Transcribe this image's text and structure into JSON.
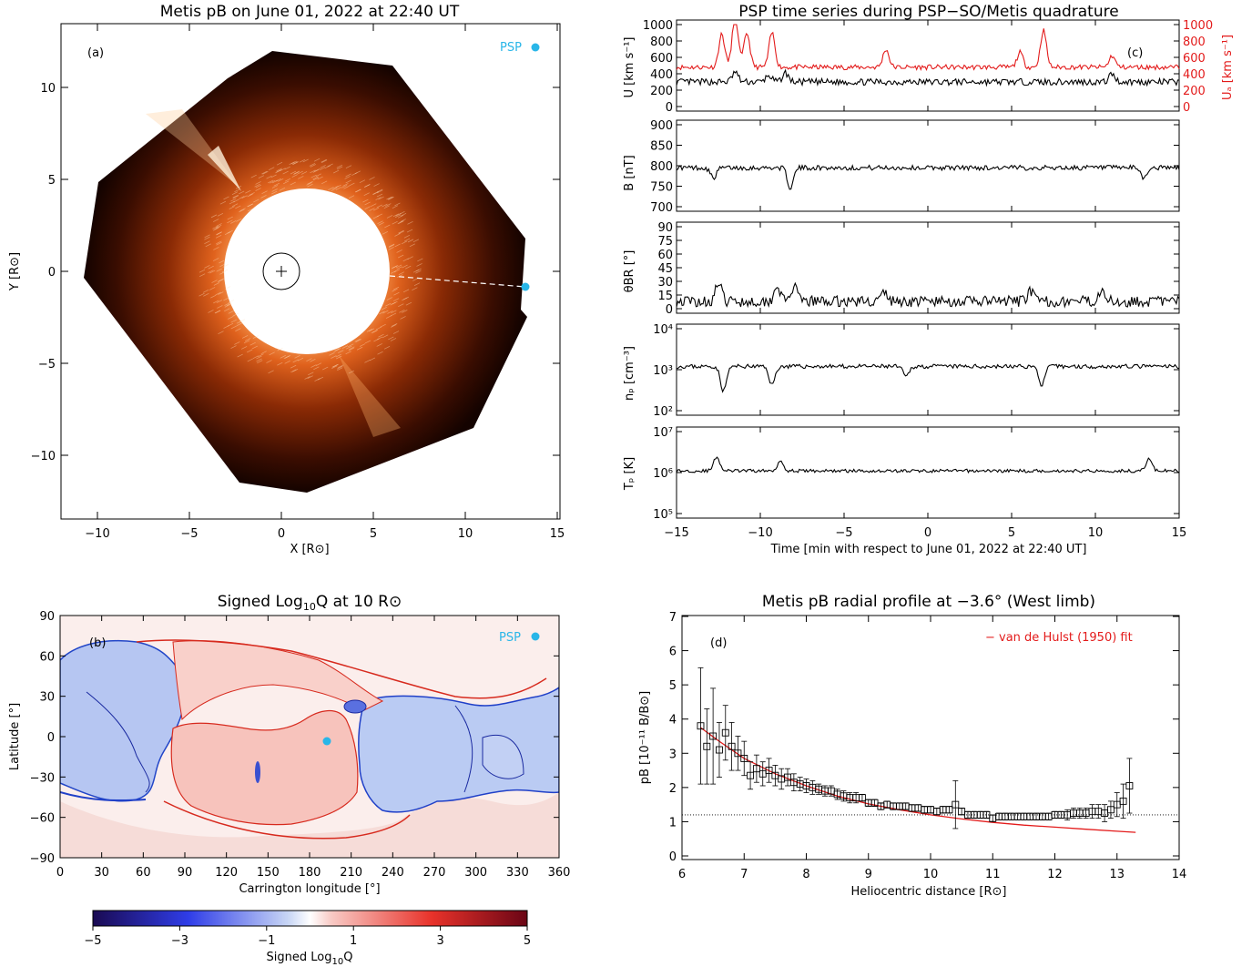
{
  "panel_a": {
    "title": "Metis pB on June 01, 2022 at 22:40 UT",
    "panel_label": "(a)",
    "marker_label": "PSP",
    "xlabel": "X [R⊙]",
    "ylabel": "Y [R⊙]",
    "xticks": [
      "−10",
      "−5",
      "0",
      "5",
      "10",
      "15"
    ],
    "yticks": [
      "−10",
      "−5",
      "0",
      "5",
      "10"
    ],
    "colors": {
      "psp": "#29b6e8",
      "corona": "#a33a0a"
    }
  },
  "panel_b": {
    "title": "Signed Log",
    "title_sub": "10",
    "title_rest": "Q at 10 R⊙",
    "panel_label": "(b)",
    "marker_label": "PSP",
    "xlabel": "Carrington longitude [°]",
    "ylabel": "Latitude [°]",
    "xticks": [
      "0",
      "30",
      "60",
      "90",
      "120",
      "150",
      "180",
      "210",
      "240",
      "270",
      "300",
      "330",
      "360"
    ],
    "yticks": [
      "90",
      "60",
      "30",
      "0",
      "−30",
      "−60",
      "−90"
    ],
    "colorbar": {
      "ticks": [
        "−5",
        "−3",
        "−1",
        "1",
        "3",
        "5"
      ],
      "label": "Signed Log",
      "label_sub": "10",
      "label_rest": "Q"
    }
  },
  "panel_c": {
    "title": "PSP time series during PSP−SO/Metis quadrature",
    "panel_label": "(c)",
    "xlabel": "Time [min with respect to June 01, 2022 at 22:40 UT]",
    "xticks": [
      "−15",
      "−10",
      "−5",
      "0",
      "5",
      "10",
      "15"
    ],
    "sub": {
      "u": {
        "ylabel": "U [km s⁻¹]",
        "ylabel_right": "Uₐ [km s⁻¹]",
        "ticks": [
          "1000",
          "800",
          "600",
          "400",
          "200",
          "0"
        ]
      },
      "b": {
        "ylabel": "B [nT]",
        "ticks": [
          "900",
          "850",
          "800",
          "750",
          "700"
        ]
      },
      "theta": {
        "ylabel": "θBR [°]",
        "ticks": [
          "90",
          "75",
          "60",
          "45",
          "30",
          "15",
          "0"
        ]
      },
      "np": {
        "ylabel": "nₚ [cm⁻³]",
        "ticks": [
          "10⁴",
          "10³",
          "10²"
        ]
      },
      "tp": {
        "ylabel": "Tₚ [K]",
        "ticks": [
          "10⁷",
          "10⁶",
          "10⁵"
        ]
      }
    },
    "colors": {
      "u": "#000000",
      "ua": "#e31b1b"
    }
  },
  "panel_d": {
    "title": "Metis pB radial profile at −3.6° (West limb)",
    "panel_label": "(d)",
    "legend": "− van de Hulst (1950) fit",
    "xlabel": "Heliocentric distance [R⊙]",
    "ylabel": "pB [10⁻¹¹ B/B⊙]",
    "xticks": [
      "6",
      "7",
      "8",
      "9",
      "10",
      "11",
      "12",
      "13",
      "14"
    ],
    "yticks": [
      "7",
      "6",
      "5",
      "4",
      "3",
      "2",
      "1",
      "0"
    ],
    "colors": {
      "fit": "#e31b1b"
    }
  },
  "chart_data": [
    {
      "type": "heatmap",
      "id": "a",
      "title": "Metis pB on June 01, 2022 at 22:40 UT",
      "xlabel": "X [R⊙]",
      "ylabel": "Y [R⊙]",
      "xlim": [
        -12,
        15
      ],
      "ylim": [
        -13.5,
        13.5
      ],
      "occulter_radius": 4.5,
      "psp_top": [
        13.8,
        12.2
      ],
      "psp_position": [
        13.3,
        -0.85
      ]
    },
    {
      "type": "heatmap",
      "id": "b",
      "title": "Signed Log10Q at 10 R⊙",
      "xlabel": "Carrington longitude [°]",
      "ylabel": "Latitude [°]",
      "xlim": [
        0,
        360
      ],
      "ylim": [
        -90,
        90
      ],
      "psp_top": [
        342,
        76
      ],
      "psp_position": [
        192,
        -3
      ],
      "colorbar_range": [
        -5,
        5
      ]
    },
    {
      "type": "line",
      "id": "c",
      "xlim": [
        -15,
        15
      ],
      "series": [
        {
          "name": "U",
          "ylim": [
            0,
            1000
          ],
          "baseline": 300,
          "amplitude": 40,
          "peaks": [
            [
              -11.5,
              120
            ],
            [
              -9.5,
              80
            ],
            [
              -8.5,
              110
            ],
            [
              11,
              100
            ]
          ]
        },
        {
          "name": "UA",
          "ylim": [
            0,
            1000
          ],
          "baseline": 480,
          "amplitude": 30,
          "peaks": [
            [
              -12.3,
              400
            ],
            [
              -11.5,
              640
            ],
            [
              -10.8,
              420
            ],
            [
              -9.3,
              420
            ],
            [
              -2.5,
              220
            ],
            [
              5.5,
              180
            ],
            [
              6.9,
              450
            ],
            [
              11,
              140
            ]
          ]
        },
        {
          "name": "B",
          "ylim": [
            700,
            900
          ],
          "baseline": 795,
          "amplitude": 6,
          "peaks": [
            [
              -12.8,
              -25
            ],
            [
              -8.2,
              -50
            ],
            [
              12.9,
              -25
            ]
          ]
        },
        {
          "name": "thetaBR",
          "ylim": [
            0,
            90
          ],
          "baseline": 8,
          "amplitude": 6,
          "peaks": [
            [
              -12.5,
              20
            ],
            [
              -9,
              18
            ],
            [
              -8,
              16
            ],
            [
              -2.6,
              10
            ],
            [
              6.1,
              12
            ],
            [
              10.4,
              16
            ]
          ]
        },
        {
          "name": "np",
          "ylim": [
            100,
            10000
          ],
          "scale": "log",
          "baseline": 1200,
          "amplitude": 0.05,
          "peaks": [
            [
              -12.2,
              -0.6
            ],
            [
              -9.3,
              -0.45
            ],
            [
              -1.3,
              -0.25
            ],
            [
              6.8,
              -0.45
            ]
          ]
        },
        {
          "name": "Tp",
          "ylim": [
            100000,
            10000000
          ],
          "scale": "log",
          "baseline": 1100000,
          "amplitude": 0.04,
          "peaks": [
            [
              -12.6,
              0.35
            ],
            [
              -8.8,
              0.25
            ],
            [
              13.2,
              0.3
            ]
          ]
        }
      ]
    },
    {
      "type": "scatter",
      "id": "d",
      "title": "Metis pB radial profile at −3.6° (West limb)",
      "xlabel": "Heliocentric distance [R⊙]",
      "ylabel": "pB [10⁻¹¹ B/B⊙]",
      "xlim": [
        6,
        14
      ],
      "ylim": [
        0,
        7
      ],
      "x": [
        6.3,
        6.4,
        6.5,
        6.6,
        6.7,
        6.8,
        6.9,
        7.0,
        7.1,
        7.2,
        7.3,
        7.4,
        7.5,
        7.6,
        7.7,
        7.8,
        7.9,
        8.0,
        8.1,
        8.2,
        8.3,
        8.4,
        8.5,
        8.6,
        8.7,
        8.8,
        8.9,
        9.0,
        9.1,
        9.2,
        9.3,
        9.4,
        9.5,
        9.6,
        9.7,
        9.8,
        9.9,
        10.0,
        10.1,
        10.2,
        10.3,
        10.4,
        10.5,
        10.6,
        10.7,
        10.8,
        10.9,
        11.0,
        11.1,
        11.2,
        11.3,
        11.4,
        11.5,
        11.6,
        11.7,
        11.8,
        11.9,
        12.0,
        12.1,
        12.2,
        12.3,
        12.4,
        12.5,
        12.6,
        12.7,
        12.8,
        12.9,
        13.0,
        13.1,
        13.2
      ],
      "y": [
        3.8,
        3.2,
        3.5,
        3.1,
        3.6,
        3.2,
        3.0,
        2.85,
        2.35,
        2.55,
        2.4,
        2.5,
        2.35,
        2.25,
        2.3,
        2.15,
        2.1,
        2.05,
        2.0,
        1.95,
        1.9,
        1.9,
        1.8,
        1.75,
        1.7,
        1.7,
        1.7,
        1.55,
        1.55,
        1.45,
        1.5,
        1.45,
        1.45,
        1.45,
        1.4,
        1.4,
        1.35,
        1.35,
        1.3,
        1.35,
        1.35,
        1.5,
        1.3,
        1.2,
        1.2,
        1.2,
        1.2,
        1.1,
        1.15,
        1.15,
        1.15,
        1.15,
        1.15,
        1.15,
        1.15,
        1.15,
        1.15,
        1.2,
        1.2,
        1.2,
        1.25,
        1.25,
        1.25,
        1.3,
        1.3,
        1.25,
        1.35,
        1.5,
        1.6,
        2.05
      ],
      "err": [
        1.7,
        1.1,
        1.4,
        0.8,
        0.8,
        0.7,
        0.5,
        0.5,
        0.4,
        0.4,
        0.35,
        0.35,
        0.3,
        0.3,
        0.25,
        0.25,
        0.2,
        0.2,
        0.2,
        0.15,
        0.15,
        0.15,
        0.15,
        0.15,
        0.15,
        0.15,
        0.1,
        0.1,
        0.1,
        0.1,
        0.1,
        0.1,
        0.1,
        0.1,
        0.1,
        0.1,
        0.1,
        0.1,
        0.1,
        0.1,
        0.1,
        0.7,
        0.1,
        0.1,
        0.1,
        0.1,
        0.1,
        0.1,
        0.1,
        0.1,
        0.1,
        0.1,
        0.1,
        0.1,
        0.1,
        0.1,
        0.1,
        0.1,
        0.1,
        0.15,
        0.15,
        0.15,
        0.15,
        0.2,
        0.2,
        0.25,
        0.25,
        0.35,
        0.5,
        0.8
      ],
      "fit": {
        "name": "van de Hulst (1950) fit",
        "x": [
          6.3,
          6.6,
          7.0,
          7.5,
          8.0,
          8.5,
          9.0,
          9.5,
          10.0,
          10.5,
          11.0,
          11.5,
          12.0,
          12.5,
          13.0,
          13.3
        ],
        "y": [
          3.75,
          3.35,
          2.85,
          2.4,
          2.05,
          1.75,
          1.52,
          1.35,
          1.2,
          1.08,
          0.98,
          0.9,
          0.84,
          0.78,
          0.72,
          0.69
        ]
      },
      "hline": 1.2
    }
  ]
}
